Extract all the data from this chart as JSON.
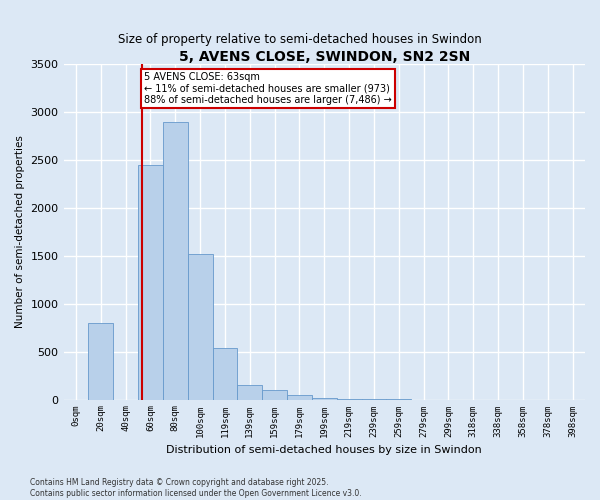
{
  "title": "5, AVENS CLOSE, SWINDON, SN2 2SN",
  "subtitle": "Size of property relative to semi-detached houses in Swindon",
  "xlabel": "Distribution of semi-detached houses by size in Swindon",
  "ylabel": "Number of semi-detached properties",
  "bar_labels": [
    "0sqm",
    "20sqm",
    "40sqm",
    "60sqm",
    "80sqm",
    "100sqm",
    "119sqm",
    "139sqm",
    "159sqm",
    "179sqm",
    "199sqm",
    "219sqm",
    "239sqm",
    "259sqm",
    "279sqm",
    "299sqm",
    "318sqm",
    "338sqm",
    "358sqm",
    "378sqm",
    "398sqm"
  ],
  "bar_values": [
    0,
    800,
    0,
    2450,
    2900,
    1520,
    540,
    150,
    100,
    50,
    20,
    10,
    5,
    5,
    0,
    0,
    0,
    0,
    0,
    0,
    0
  ],
  "bar_color": "#b8d0ea",
  "bar_edge_color": "#6699cc",
  "background_color": "#dce8f5",
  "grid_color": "#ffffff",
  "property_label": "5 AVENS CLOSE: 63sqm",
  "annotation_line1": "← 11% of semi-detached houses are smaller (973)",
  "annotation_line2": "88% of semi-detached houses are larger (7,486) →",
  "vline_color": "#cc0000",
  "annotation_box_color": "#cc0000",
  "ylim": [
    0,
    3500
  ],
  "footnote1": "Contains HM Land Registry data © Crown copyright and database right 2025.",
  "footnote2": "Contains public sector information licensed under the Open Government Licence v3.0."
}
